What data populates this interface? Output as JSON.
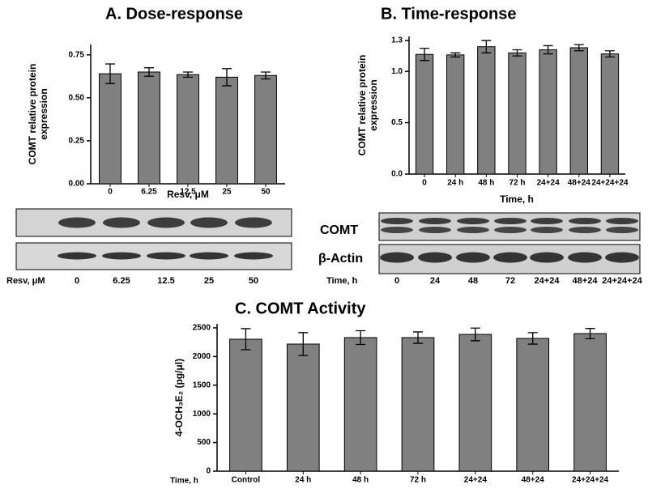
{
  "chart_data": [
    {
      "type": "bar",
      "title": "A. Dose-response",
      "ylabel": "COMT relative protein expression",
      "xlabel": "Resv, μM",
      "categories": [
        "0",
        "6.25",
        "12.5",
        "25",
        "50"
      ],
      "values": [
        0.64,
        0.65,
        0.635,
        0.62,
        0.63
      ],
      "errors": [
        0.057,
        0.025,
        0.015,
        0.05,
        0.02
      ],
      "color": "#808080",
      "ylim": [
        0,
        0.81
      ],
      "yticks": [
        {
          "value": 0,
          "label": "0.00"
        },
        {
          "value": 0.25,
          "label": "0.25"
        },
        {
          "value": 0.5,
          "label": "0.50"
        },
        {
          "value": 0.75,
          "label": "0.75"
        }
      ]
    },
    {
      "type": "bar",
      "title": "B. Time-response",
      "ylabel": "COMT relative protein expression",
      "xlabel": "Time, h",
      "categories": [
        "0",
        "24 h",
        "48 h",
        "72 h",
        "24+24",
        "48+24",
        "24+24+24"
      ],
      "values": [
        1.165,
        1.16,
        1.24,
        1.18,
        1.21,
        1.23,
        1.17
      ],
      "errors": [
        0.06,
        0.02,
        0.06,
        0.03,
        0.04,
        0.03,
        0.03
      ],
      "color": "#808080",
      "ylim": [
        0,
        1.34
      ],
      "yticks": [
        {
          "value": 0,
          "label": "0.0"
        },
        0.5,
        {
          "value": 1,
          "label": "1.0"
        },
        1.3
      ]
    },
    {
      "type": "bar",
      "title": "C. COMT Activity",
      "ylabel": "4-OCH₃E₂ (pg/μl)",
      "xlabel": "Time, h",
      "categories": [
        "Control",
        "24 h",
        "48 h",
        "72 h",
        "24+24",
        "48+24",
        "24+24+24"
      ],
      "values": [
        2302,
        2217,
        2330,
        2330,
        2386,
        2316,
        2400
      ],
      "errors": [
        184,
        200,
        120,
        100,
        110,
        100,
        90
      ],
      "color": "#808080",
      "ylim": [
        0,
        2570
      ],
      "yticks": [
        0,
        500,
        1000,
        1500,
        2000,
        2500
      ]
    }
  ],
  "blots": {
    "comt_label": "COMT",
    "actin_label": "β-Actin",
    "time_lanes": [
      "0",
      "24",
      "48",
      "72",
      "24+24",
      "48+24",
      "24+24+24"
    ]
  }
}
